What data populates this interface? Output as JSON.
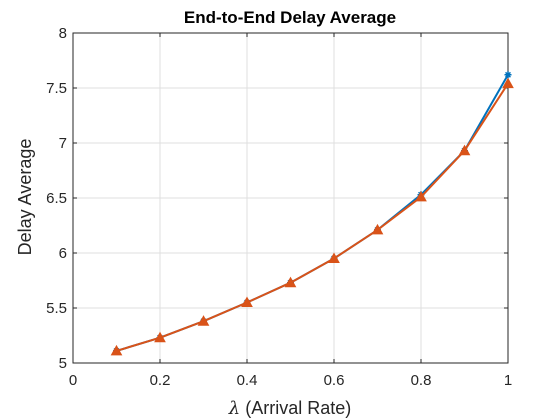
{
  "chart_data": {
    "type": "line",
    "title": "End-to-End Delay Average",
    "xlabel_symbol": "λ",
    "xlabel_text": " (Arrival Rate)",
    "ylabel": "Delay Average",
    "xlim": [
      0,
      1
    ],
    "ylim": [
      5,
      8
    ],
    "xticks": [
      0,
      0.2,
      0.4,
      0.6,
      0.8,
      1
    ],
    "xtick_labels": [
      "0",
      "0.2",
      "0.4",
      "0.6",
      "0.8",
      "1"
    ],
    "yticks": [
      5,
      5.5,
      6,
      6.5,
      7,
      7.5,
      8
    ],
    "ytick_labels": [
      "5",
      "5.5",
      "6",
      "6.5",
      "7",
      "7.5",
      "8"
    ],
    "grid": true,
    "x": [
      0.1,
      0.2,
      0.3,
      0.4,
      0.5,
      0.6,
      0.7,
      0.8,
      0.9,
      1.0
    ],
    "series": [
      {
        "values": [
          5.11,
          5.23,
          5.38,
          5.55,
          5.73,
          5.95,
          6.21,
          6.53,
          6.93,
          7.62
        ],
        "color": "#0072BD",
        "marker": "asterisk"
      },
      {
        "values": [
          5.11,
          5.23,
          5.38,
          5.55,
          5.73,
          5.95,
          6.21,
          6.51,
          6.93,
          7.54
        ],
        "color": "#D95319",
        "marker": "triangle"
      }
    ]
  }
}
